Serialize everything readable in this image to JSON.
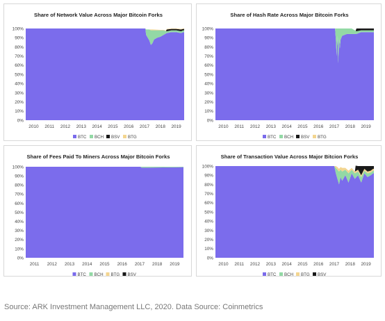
{
  "caption": "Source: ARK Investment Management LLC, 2020. Data Source: Coinmetrics",
  "colors": {
    "BTC": "#7b6cec",
    "BCH": "#93d9a5",
    "BSV": "#1a1a1a",
    "BTG": "#f3d590"
  },
  "chart_data": [
    {
      "type": "area",
      "stacked": true,
      "title": "Share of Network Value Across Major Bitcoin Forks",
      "x": [
        "2010",
        "2011",
        "2012",
        "2013",
        "2014",
        "2015",
        "2016",
        "2017",
        "2018",
        "2019"
      ],
      "yticks": [
        "0%",
        "10%",
        "20%",
        "30%",
        "40%",
        "50%",
        "60%",
        "70%",
        "80%",
        "90%",
        "100%"
      ],
      "ylim": [
        0,
        100
      ],
      "legend": [
        "BTC",
        "BCH",
        "BSV",
        "BTG"
      ],
      "legend_position": "bottom",
      "series": [
        {
          "name": "BTC",
          "points": [
            [
              2010.0,
              100
            ],
            [
              2017.55,
              100
            ],
            [
              2017.6,
              93
            ],
            [
              2017.7,
              90
            ],
            [
              2017.8,
              87
            ],
            [
              2017.9,
              82
            ],
            [
              2018.0,
              84
            ],
            [
              2018.1,
              88
            ],
            [
              2018.3,
              90
            ],
            [
              2018.5,
              91
            ],
            [
              2018.7,
              93
            ],
            [
              2018.9,
              95
            ],
            [
              2019.2,
              96
            ],
            [
              2019.5,
              96
            ],
            [
              2019.8,
              95
            ],
            [
              2019.95,
              96
            ]
          ]
        },
        {
          "name": "BCH",
          "points": [
            [
              2010.0,
              0
            ],
            [
              2017.55,
              0
            ],
            [
              2017.6,
              6
            ],
            [
              2017.7,
              9
            ],
            [
              2017.8,
              12
            ],
            [
              2017.9,
              16
            ],
            [
              2018.0,
              14
            ],
            [
              2018.1,
              10
            ],
            [
              2018.3,
              8
            ],
            [
              2018.5,
              7
            ],
            [
              2018.7,
              5
            ],
            [
              2018.9,
              2
            ],
            [
              2019.2,
              2
            ],
            [
              2019.5,
              2
            ],
            [
              2019.8,
              2
            ],
            [
              2019.95,
              2
            ]
          ]
        },
        {
          "name": "BSV",
          "points": [
            [
              2010.0,
              0
            ],
            [
              2018.85,
              0
            ],
            [
              2018.9,
              2
            ],
            [
              2019.2,
              1.5
            ],
            [
              2019.5,
              1.5
            ],
            [
              2019.8,
              2
            ],
            [
              2019.95,
              1.5
            ]
          ]
        },
        {
          "name": "BTG",
          "points": [
            [
              2010.0,
              0
            ],
            [
              2017.8,
              0
            ],
            [
              2017.9,
              1
            ],
            [
              2018.0,
              1
            ],
            [
              2018.5,
              0.5
            ],
            [
              2019.95,
              0.5
            ]
          ]
        }
      ]
    },
    {
      "type": "area",
      "stacked": true,
      "title": "Share of Hash Rate Across Major Bitcoin Forks",
      "x": [
        "2010",
        "2011",
        "2012",
        "2013",
        "2014",
        "2015",
        "2016",
        "2017",
        "2018",
        "2019"
      ],
      "yticks": [
        "0%",
        "10%",
        "20%",
        "30%",
        "40%",
        "50%",
        "60%",
        "70%",
        "80%",
        "90%",
        "100%"
      ],
      "ylim": [
        0,
        100
      ],
      "legend": [
        "BTC",
        "BCH",
        "BSV",
        "BTG"
      ],
      "legend_position": "bottom",
      "series": [
        {
          "name": "BTC",
          "points": [
            [
              2010.0,
              100
            ],
            [
              2017.55,
              100
            ],
            [
              2017.6,
              88
            ],
            [
              2017.65,
              70
            ],
            [
              2017.7,
              92
            ],
            [
              2017.75,
              62
            ],
            [
              2017.8,
              90
            ],
            [
              2017.85,
              78
            ],
            [
              2017.9,
              88
            ],
            [
              2018.0,
              92
            ],
            [
              2018.3,
              94
            ],
            [
              2018.6,
              94
            ],
            [
              2018.9,
              94
            ],
            [
              2019.2,
              96
            ],
            [
              2019.5,
              96
            ],
            [
              2019.95,
              96
            ]
          ]
        },
        {
          "name": "BCH",
          "points": [
            [
              2010.0,
              0
            ],
            [
              2017.55,
              0
            ],
            [
              2017.6,
              12
            ],
            [
              2017.65,
              30
            ],
            [
              2017.7,
              8
            ],
            [
              2017.75,
              38
            ],
            [
              2017.8,
              10
            ],
            [
              2017.85,
              22
            ],
            [
              2017.9,
              12
            ],
            [
              2018.0,
              8
            ],
            [
              2018.3,
              6
            ],
            [
              2018.6,
              6
            ],
            [
              2018.9,
              3
            ],
            [
              2019.2,
              2
            ],
            [
              2019.5,
              2
            ],
            [
              2019.95,
              2
            ]
          ]
        },
        {
          "name": "BSV",
          "points": [
            [
              2010.0,
              0
            ],
            [
              2018.85,
              0
            ],
            [
              2018.9,
              3
            ],
            [
              2019.2,
              2
            ],
            [
              2019.5,
              2
            ],
            [
              2019.95,
              2
            ]
          ]
        },
        {
          "name": "BTG",
          "points": [
            [
              2010.0,
              0
            ],
            [
              2019.95,
              0
            ]
          ]
        }
      ]
    },
    {
      "type": "area",
      "stacked": true,
      "title": "Share of Fees Paid To Miners Across Major Bitcoin Forks",
      "x": [
        "2011",
        "2012",
        "2013",
        "2014",
        "2015",
        "2016",
        "2017",
        "2018",
        "2019"
      ],
      "yticks": [
        "0%",
        "10%",
        "20%",
        "30%",
        "40%",
        "50%",
        "60%",
        "70%",
        "80%",
        "90%",
        "100%"
      ],
      "ylim": [
        0,
        100
      ],
      "legend": [
        "BTC",
        "BCH",
        "BTG",
        "BSV"
      ],
      "legend_position": "bottom",
      "series": [
        {
          "name": "BTC",
          "points": [
            [
              2011.0,
              100
            ],
            [
              2017.55,
              100
            ],
            [
              2017.6,
              99
            ],
            [
              2018.0,
              99
            ],
            [
              2019.95,
              99.5
            ]
          ]
        },
        {
          "name": "BCH",
          "points": [
            [
              2011.0,
              0
            ],
            [
              2017.55,
              0
            ],
            [
              2017.6,
              1
            ],
            [
              2018.0,
              1
            ],
            [
              2019.95,
              0.5
            ]
          ]
        },
        {
          "name": "BTG",
          "points": [
            [
              2011.0,
              0
            ],
            [
              2019.95,
              0
            ]
          ]
        },
        {
          "name": "BSV",
          "points": [
            [
              2011.0,
              0
            ],
            [
              2019.95,
              0
            ]
          ]
        }
      ]
    },
    {
      "type": "area",
      "stacked": true,
      "title": "Share of Transaction Value Across Major Bitcion Forks",
      "x": [
        "2010",
        "2011",
        "2012",
        "2013",
        "2014",
        "2015",
        "2016",
        "2017",
        "2018",
        "2019"
      ],
      "yticks": [
        "0%",
        "10%",
        "20%",
        "30%",
        "40%",
        "50%",
        "60%",
        "70%",
        "80%",
        "90%",
        "100%"
      ],
      "ylim": [
        0,
        100
      ],
      "legend": [
        "BTC",
        "BCH",
        "BTG",
        "BSV"
      ],
      "legend_position": "bottom",
      "series": [
        {
          "name": "BTC",
          "points": [
            [
              2010.0,
              100
            ],
            [
              2017.5,
              100
            ],
            [
              2017.6,
              92
            ],
            [
              2017.7,
              86
            ],
            [
              2017.8,
              80
            ],
            [
              2017.9,
              88
            ],
            [
              2018.0,
              84
            ],
            [
              2018.2,
              90
            ],
            [
              2018.4,
              82
            ],
            [
              2018.6,
              92
            ],
            [
              2018.8,
              86
            ],
            [
              2019.0,
              90
            ],
            [
              2019.2,
              82
            ],
            [
              2019.4,
              92
            ],
            [
              2019.6,
              88
            ],
            [
              2019.8,
              90
            ],
            [
              2019.95,
              92
            ]
          ]
        },
        {
          "name": "BCH",
          "points": [
            [
              2010.0,
              0
            ],
            [
              2017.5,
              0
            ],
            [
              2017.6,
              6
            ],
            [
              2017.7,
              10
            ],
            [
              2017.8,
              14
            ],
            [
              2017.9,
              8
            ],
            [
              2018.0,
              10
            ],
            [
              2018.2,
              6
            ],
            [
              2018.4,
              10
            ],
            [
              2018.6,
              4
            ],
            [
              2018.8,
              6
            ],
            [
              2019.0,
              4
            ],
            [
              2019.2,
              6
            ],
            [
              2019.4,
              3
            ],
            [
              2019.6,
              4
            ],
            [
              2019.8,
              3
            ],
            [
              2019.95,
              3
            ]
          ]
        },
        {
          "name": "BTG",
          "points": [
            [
              2010.0,
              0
            ],
            [
              2017.5,
              0
            ],
            [
              2017.6,
              2
            ],
            [
              2017.7,
              3
            ],
            [
              2017.8,
              3
            ],
            [
              2017.9,
              3
            ],
            [
              2018.0,
              4
            ],
            [
              2018.2,
              2
            ],
            [
              2018.4,
              3
            ],
            [
              2018.6,
              2
            ],
            [
              2018.8,
              2
            ],
            [
              2019.0,
              2
            ],
            [
              2019.2,
              2
            ],
            [
              2019.4,
              2
            ],
            [
              2019.6,
              2
            ],
            [
              2019.8,
              2
            ],
            [
              2019.95,
              2
            ]
          ]
        },
        {
          "name": "BSV",
          "points": [
            [
              2010.0,
              0
            ],
            [
              2018.8,
              0
            ],
            [
              2018.85,
              6
            ],
            [
              2019.0,
              4
            ],
            [
              2019.2,
              10
            ],
            [
              2019.4,
              3
            ],
            [
              2019.6,
              6
            ],
            [
              2019.8,
              5
            ],
            [
              2019.95,
              3
            ]
          ]
        }
      ]
    }
  ]
}
